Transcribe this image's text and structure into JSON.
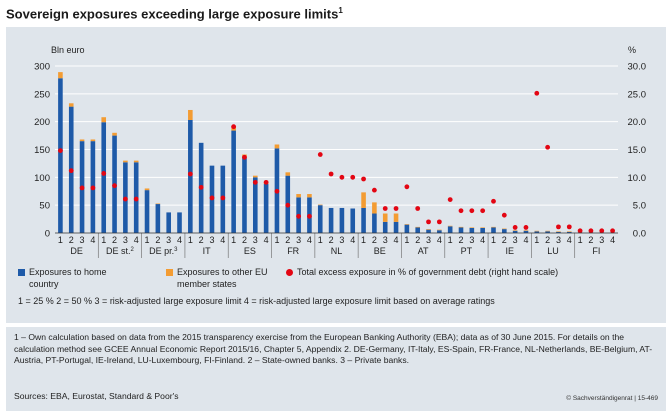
{
  "title": "Sovereign exposures exceeding large exposure limits",
  "title_sup": "1",
  "colors": {
    "home": "#1e5aa8",
    "other": "#f39c33",
    "dot": "#e30613",
    "panel": "#dfe5eb",
    "grid": "#ffffff"
  },
  "chart_data": {
    "type": "bar",
    "stacked": true,
    "left_axis": {
      "label": "Bln euro",
      "range": [
        0,
        300
      ],
      "ticks": [
        "0",
        "50",
        "100",
        "150",
        "200",
        "250",
        "300"
      ]
    },
    "right_axis": {
      "label": "%",
      "range": [
        0,
        30
      ],
      "ticks": [
        "0.0",
        "5.0",
        "10.0",
        "15.0",
        "20.0",
        "25.0",
        "30.0"
      ]
    },
    "groups": [
      {
        "label": "DE",
        "sup": "",
        "cats": [
          "1",
          "2",
          "3",
          "4"
        ]
      },
      {
        "label": "DE st.",
        "sup": "2",
        "cats": [
          "1",
          "2",
          "3",
          "4"
        ]
      },
      {
        "label": "DE pr.",
        "sup": "3",
        "cats": [
          "1",
          "2",
          "3",
          "4"
        ]
      },
      {
        "label": "IT",
        "sup": "",
        "cats": [
          "1",
          "2",
          "3",
          "4"
        ]
      },
      {
        "label": "ES",
        "sup": "",
        "cats": [
          "1",
          "2",
          "3",
          "4"
        ]
      },
      {
        "label": "FR",
        "sup": "",
        "cats": [
          "1",
          "2",
          "3",
          "4"
        ]
      },
      {
        "label": "NL",
        "sup": "",
        "cats": [
          "1",
          "2",
          "3",
          "4"
        ]
      },
      {
        "label": "BE",
        "sup": "",
        "cats": [
          "1",
          "2",
          "3",
          "4"
        ]
      },
      {
        "label": "AT",
        "sup": "",
        "cats": [
          "1",
          "2",
          "3",
          "4"
        ]
      },
      {
        "label": "PT",
        "sup": "",
        "cats": [
          "1",
          "2",
          "3",
          "4"
        ]
      },
      {
        "label": "IE",
        "sup": "",
        "cats": [
          "1",
          "2",
          "3",
          "4"
        ]
      },
      {
        "label": "LU",
        "sup": "",
        "cats": [
          "1",
          "2",
          "3",
          "4"
        ]
      },
      {
        "label": "FI",
        "sup": "",
        "cats": [
          "1",
          "2",
          "3",
          "4"
        ]
      }
    ],
    "series": [
      {
        "name": "Exposures to home country",
        "axis": "left",
        "values": [
          278,
          227,
          165,
          165,
          199,
          175,
          127,
          127,
          77,
          52,
          37,
          37,
          203,
          162,
          121,
          121,
          184,
          136,
          100,
          88,
          152,
          103,
          64,
          64,
          50,
          45,
          45,
          44,
          45,
          35,
          20,
          20,
          15,
          10,
          6,
          5,
          12,
          10,
          9,
          9,
          10,
          7,
          4,
          4,
          3,
          3,
          2,
          2,
          1,
          1,
          1,
          1
        ]
      },
      {
        "name": "Exposures to other EU member states",
        "axis": "left",
        "values": [
          11,
          6,
          3,
          3,
          9,
          5,
          3,
          3,
          3,
          1,
          0,
          0,
          18,
          0,
          0,
          0,
          8,
          5,
          3,
          3,
          7,
          6,
          6,
          6,
          1,
          0,
          0,
          0,
          28,
          20,
          15,
          15,
          1,
          1,
          1,
          1,
          1,
          1,
          1,
          1,
          1,
          1,
          1,
          1,
          1,
          1,
          1,
          1,
          0,
          0,
          0,
          0
        ]
      },
      {
        "name": "Total excess exposure in % of government debt (right hand scale)",
        "axis": "right",
        "values": [
          14.8,
          11.2,
          8.1,
          8.1,
          10.7,
          8.5,
          6.1,
          6.1,
          null,
          null,
          null,
          null,
          10.6,
          8.2,
          6.3,
          6.3,
          19.1,
          13.6,
          9.1,
          9.1,
          7.5,
          5.0,
          3.0,
          3.0,
          14.1,
          10.6,
          10.0,
          10.0,
          9.7,
          7.7,
          4.4,
          4.4,
          8.3,
          4.4,
          2.0,
          2.0,
          6.0,
          4.0,
          4.0,
          4.0,
          5.7,
          3.2,
          1.0,
          1.0,
          25.1,
          15.4,
          1.1,
          1.1,
          0.4,
          0.4,
          0.4,
          0.4
        ]
      }
    ]
  },
  "legend": {
    "home": "Exposures to home country",
    "other": "Exposures to other EU member states",
    "dot": "Total excess exposure in % of government debt (right hand scale)"
  },
  "note": "1 = 25 %    2 = 50 %    3 = risk-adjusted large exposure limit    4 = risk-adjusted large exposure limit based on average ratings",
  "footnote": "1 – Own calculation based on data from the 2015 transparency exercise from the European Banking Authority (EBA); data as of 30 June 2015. For details on the calculation method see GCEE Annual Economic Report 2015/16, Chapter 5, Appendix 2. DE-Germany, IT-Italy, ES-Spain, FR-France, NL-Netherlands, BE-Belgium, AT-Austria, PT-Portugal, IE-Ireland, LU-Luxembourg, FI-Finland.   2 – State-owned banks.   3 – Private banks.",
  "sources": "Sources: EBA, Eurostat, Standard & Poor's",
  "copyright": "© Sachverständigenrat | 15-469"
}
